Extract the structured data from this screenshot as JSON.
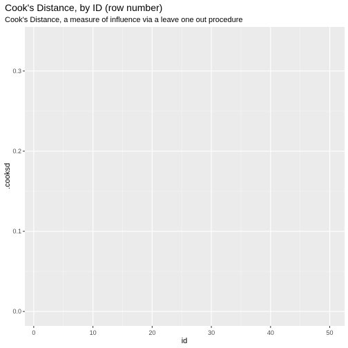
{
  "chart_data": {
    "type": "scatter",
    "title": "Cook's Distance, by ID (row number)",
    "subtitle": "Cook's Distance, a measure of influence via a leave one out procedure",
    "xlabel": "id",
    "ylabel": ".cooksd",
    "xlim": [
      -1.5,
      52.5
    ],
    "ylim": [
      -0.018,
      0.355
    ],
    "x_ticks": [
      0,
      10,
      20,
      30,
      40,
      50
    ],
    "x_tick_labels": [
      "0",
      "10",
      "20",
      "30",
      "40",
      "50"
    ],
    "x_minor_ticks": [
      5,
      15,
      25,
      35,
      45
    ],
    "y_ticks": [
      0.0,
      0.1,
      0.2,
      0.3
    ],
    "y_tick_labels": [
      "0.0",
      "0.1",
      "0.2",
      "0.3"
    ],
    "y_minor_ticks": [
      0.05,
      0.15,
      0.25
    ],
    "grid": true,
    "series": [
      {
        "x": [],
        "y": []
      }
    ]
  },
  "colors": {
    "panel_background": "#ebebeb",
    "grid_major": "#ffffff",
    "grid_minor": "#f5f5f5",
    "tick_label": "#4d4d4d",
    "tick_mark": "#333333",
    "point": "#000000"
  }
}
